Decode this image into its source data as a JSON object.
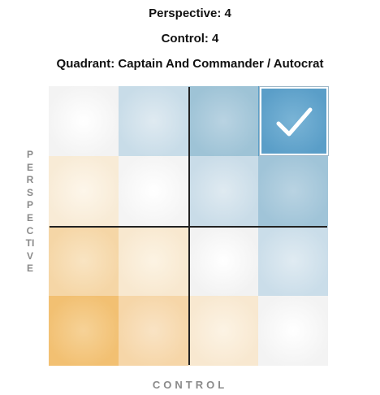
{
  "header": {
    "perspective": "Perspective: 4",
    "control": "Control: 4",
    "quadrant": "Quadrant: Captain And Commander / Autocrat"
  },
  "axes": {
    "vertical_label": "PERSPECTIVE",
    "horizontal_label": "CONTROL"
  },
  "grid": {
    "rows": 4,
    "cols": 4,
    "selected": {
      "control": 4,
      "perspective": 4
    },
    "cells": [
      [
        {
          "color": "#f3f3f3",
          "highlight": "#ffffff"
        },
        {
          "color": "#c8dce8",
          "highlight": "#dfeaf1"
        },
        {
          "color": "#9ec3d6",
          "highlight": "#b9d3e2"
        },
        {
          "color": "#5a9ec8",
          "highlight": "#7ab4d6"
        }
      ],
      [
        {
          "color": "#f8ebd6",
          "highlight": "#fdf6ea"
        },
        {
          "color": "#f4f4f4",
          "highlight": "#ffffff"
        },
        {
          "color": "#c9dce8",
          "highlight": "#dfeaf1"
        },
        {
          "color": "#a0c4d8",
          "highlight": "#b9d3e2"
        }
      ],
      [
        {
          "color": "#f5d6a6",
          "highlight": "#f9e4c2"
        },
        {
          "color": "#f8e8cf",
          "highlight": "#fcf3e3"
        },
        {
          "color": "#f2f2f2",
          "highlight": "#ffffff"
        },
        {
          "color": "#cadde9",
          "highlight": "#e0ebf2"
        }
      ],
      [
        {
          "color": "#f2c072",
          "highlight": "#f6d297"
        },
        {
          "color": "#f6d6a8",
          "highlight": "#f9e3c4"
        },
        {
          "color": "#f8e8d0",
          "highlight": "#fcf3e4"
        },
        {
          "color": "#f3f3f3",
          "highlight": "#ffffff"
        }
      ]
    ],
    "divider_color": "#222222",
    "check_color": "#ffffff"
  }
}
